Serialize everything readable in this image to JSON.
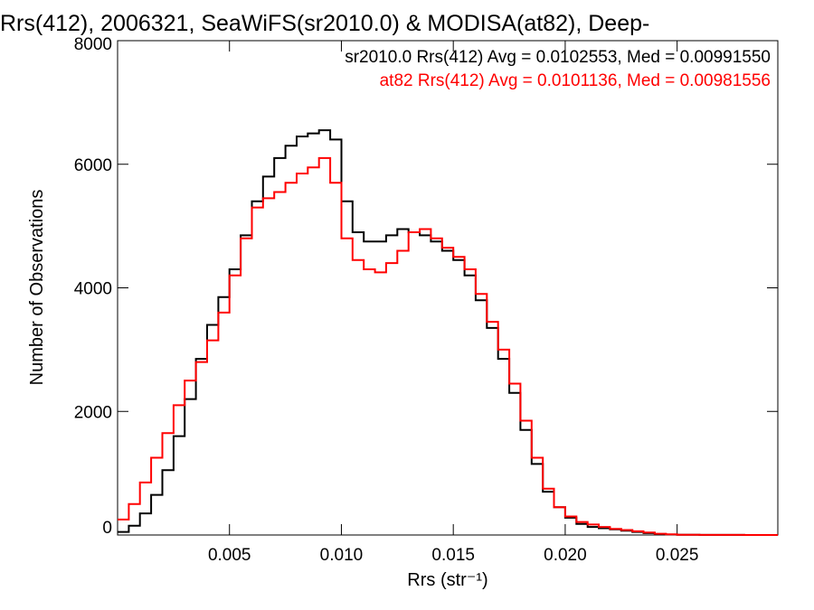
{
  "chart_data": {
    "type": "line",
    "title": "Rrs(412), 2006321, SeaWiFS(sr2010.0) & MODISA(at82), Deep-",
    "xlabel": "Rrs (str⁻¹)",
    "ylabel": "Number of Observations",
    "xlim": [
      0.0,
      0.0295
    ],
    "ylim": [
      0,
      8000
    ],
    "xticks": [
      0.005,
      0.01,
      0.015,
      0.02,
      0.025
    ],
    "xtick_labels": [
      "0.005",
      "0.010",
      "0.015",
      "0.020",
      "0.025"
    ],
    "yticks": [
      0,
      2000,
      4000,
      6000,
      8000
    ],
    "ytick_labels": [
      "0",
      "2000",
      "4000",
      "6000",
      "8000"
    ],
    "grid": false,
    "legend_position": "top-right",
    "series": [
      {
        "name": "sr2010.0",
        "label": "sr2010.0 Rrs(412) Avg = 0.0102553, Med = 0.00991550",
        "color": "#000000",
        "style": "step",
        "x": [
          0.0,
          0.0005,
          0.001,
          0.0015,
          0.002,
          0.0025,
          0.003,
          0.0035,
          0.004,
          0.0045,
          0.005,
          0.0055,
          0.006,
          0.0065,
          0.007,
          0.0075,
          0.008,
          0.0085,
          0.009,
          0.0095,
          0.01,
          0.0105,
          0.011,
          0.0115,
          0.012,
          0.0125,
          0.013,
          0.0135,
          0.014,
          0.0145,
          0.015,
          0.0155,
          0.016,
          0.0165,
          0.017,
          0.0175,
          0.018,
          0.0185,
          0.019,
          0.0195,
          0.02,
          0.0205,
          0.021,
          0.0215,
          0.022,
          0.0225,
          0.023,
          0.0235,
          0.024,
          0.0245,
          0.025,
          0.026,
          0.027,
          0.028,
          0.0295
        ],
        "y": [
          50,
          150,
          350,
          650,
          1050,
          1600,
          2200,
          2850,
          3400,
          3850,
          4300,
          4850,
          5400,
          5800,
          6100,
          6300,
          6450,
          6500,
          6550,
          6400,
          5400,
          4900,
          4750,
          4750,
          4850,
          4950,
          4900,
          4850,
          4750,
          4600,
          4450,
          4200,
          3800,
          3350,
          2850,
          2300,
          1700,
          1150,
          700,
          450,
          280,
          180,
          130,
          110,
          90,
          70,
          50,
          30,
          15,
          8,
          4,
          2,
          1,
          0,
          0
        ]
      },
      {
        "name": "at82",
        "label": "at82 Rrs(412) Avg = 0.0101136, Med = 0.00981556",
        "color": "#ff0000",
        "style": "step",
        "x": [
          0.0,
          0.0005,
          0.001,
          0.0015,
          0.002,
          0.0025,
          0.003,
          0.0035,
          0.004,
          0.0045,
          0.005,
          0.0055,
          0.006,
          0.0065,
          0.007,
          0.0075,
          0.008,
          0.0085,
          0.009,
          0.0095,
          0.01,
          0.0105,
          0.011,
          0.0115,
          0.012,
          0.0125,
          0.013,
          0.0135,
          0.014,
          0.0145,
          0.015,
          0.0155,
          0.016,
          0.0165,
          0.017,
          0.0175,
          0.018,
          0.0185,
          0.019,
          0.0195,
          0.02,
          0.0205,
          0.021,
          0.0215,
          0.022,
          0.0225,
          0.023,
          0.0235,
          0.024,
          0.0245,
          0.025,
          0.026,
          0.027,
          0.028,
          0.0295
        ],
        "y": [
          250,
          500,
          850,
          1250,
          1650,
          2100,
          2500,
          2800,
          3150,
          3600,
          4200,
          4800,
          5300,
          5450,
          5550,
          5700,
          5850,
          5950,
          6100,
          5700,
          4800,
          4450,
          4300,
          4250,
          4400,
          4600,
          4900,
          4950,
          4800,
          4650,
          4500,
          4300,
          3900,
          3450,
          3000,
          2450,
          1850,
          1250,
          750,
          450,
          300,
          210,
          170,
          130,
          100,
          80,
          60,
          40,
          20,
          10,
          5,
          2,
          1,
          0,
          0
        ]
      }
    ]
  }
}
